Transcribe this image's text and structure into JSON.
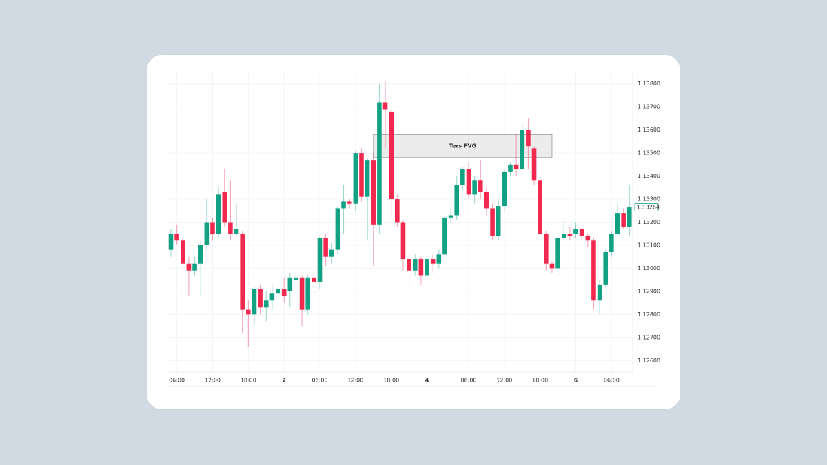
{
  "chart_data": {
    "type": "candlestick",
    "categories": [
      null,
      "06:00",
      null,
      null,
      null,
      null,
      null,
      "12:00",
      null,
      null,
      null,
      null,
      null,
      "18:00",
      null,
      null,
      null,
      null,
      null,
      "2",
      null,
      null,
      null,
      null,
      null,
      "06:00",
      null,
      null,
      null,
      null,
      null,
      "12:00",
      null,
      null,
      null,
      null,
      null,
      "18:00",
      null,
      null,
      null,
      null,
      null,
      "4",
      null,
      null,
      null,
      null,
      null,
      null,
      "06:00",
      null,
      null,
      null,
      null,
      null,
      "12:00",
      null,
      null,
      null,
      null,
      null,
      "18:00",
      null,
      null,
      null,
      null,
      null,
      "6",
      null,
      null,
      null,
      null,
      null,
      "06:00",
      null,
      null,
      null
    ],
    "open": [
      1.1308,
      1.1315,
      1.1312,
      1.1302,
      1.1299,
      1.1302,
      1.131,
      1.132,
      1.1315,
      1.1333,
      1.132,
      1.1315,
      1.1315,
      1.1282,
      1.128,
      1.1291,
      1.1283,
      1.1286,
      1.1289,
      1.1291,
      1.129,
      1.1295,
      1.1296,
      1.1282,
      1.1296,
      1.1294,
      1.1313,
      1.1305,
      1.1308,
      1.1326,
      1.1329,
      1.1328,
      1.135,
      1.1331,
      1.1347,
      1.1319,
      1.1372,
      1.1368,
      1.133,
      1.132,
      1.1304,
      1.1299,
      1.1304,
      1.1297,
      1.1304,
      1.1302,
      1.1306,
      1.1322,
      1.1323,
      1.1336,
      1.1343,
      1.1332,
      1.1338,
      1.1333,
      1.1326,
      1.1314,
      1.1327,
      1.1342,
      1.1345,
      1.1343,
      1.136,
      1.1352,
      1.1338,
      1.1315,
      1.1302,
      1.13,
      1.1313,
      1.1315,
      1.1315,
      1.1317,
      1.1314,
      1.1312,
      1.1286,
      1.1293,
      1.1307,
      1.1315,
      1.1324,
      1.1318
    ],
    "high": [
      1.1317,
      1.1319,
      1.1313,
      1.1305,
      1.1305,
      1.1312,
      1.133,
      1.1322,
      1.1335,
      1.1343,
      1.1338,
      1.1328,
      1.1316,
      1.1286,
      1.1292,
      1.1293,
      1.129,
      1.1293,
      1.1293,
      1.1296,
      1.1298,
      1.13,
      1.1297,
      1.1297,
      1.1298,
      1.1314,
      1.1315,
      1.1311,
      1.1327,
      1.1336,
      1.133,
      1.1351,
      1.1352,
      1.1348,
      1.135,
      1.138,
      1.1381,
      1.1369,
      1.1332,
      1.1321,
      1.1306,
      1.1306,
      1.1305,
      1.1306,
      1.1306,
      1.1308,
      1.1323,
      1.1326,
      1.134,
      1.1344,
      1.1346,
      1.134,
      1.1347,
      1.1335,
      1.1328,
      1.133,
      1.1343,
      1.1346,
      1.1358,
      1.1363,
      1.1365,
      1.1353,
      1.1339,
      1.1316,
      1.1303,
      1.1314,
      1.1321,
      1.1318,
      1.132,
      1.1318,
      1.1315,
      1.1313,
      1.1295,
      1.1308,
      1.1316,
      1.1328,
      1.1326,
      1.1336
    ],
    "low": [
      1.1305,
      1.131,
      1.13,
      1.1288,
      1.1297,
      1.1288,
      1.1308,
      1.1312,
      1.1313,
      1.1318,
      1.1312,
      1.1314,
      1.1272,
      1.1266,
      1.1276,
      1.128,
      1.1277,
      1.1282,
      1.1286,
      1.1285,
      1.1283,
      1.1292,
      1.1275,
      1.128,
      1.1292,
      1.1291,
      1.1301,
      1.1302,
      1.1306,
      1.1315,
      1.1326,
      1.1325,
      1.1329,
      1.1312,
      1.1301,
      1.1315,
      1.1352,
      1.1322,
      1.1318,
      1.1299,
      1.1292,
      1.1297,
      1.1293,
      1.1294,
      1.1298,
      1.13,
      1.1305,
      1.132,
      1.1321,
      1.1334,
      1.133,
      1.1328,
      1.133,
      1.1323,
      1.1312,
      1.1312,
      1.1325,
      1.134,
      1.134,
      1.1341,
      1.1343,
      1.1336,
      1.1314,
      1.1299,
      1.1298,
      1.1297,
      1.1312,
      1.1312,
      1.1313,
      1.1312,
      1.1309,
      1.1282,
      1.128,
      1.1292,
      1.1305,
      1.1314,
      1.1317,
      1.1314
    ],
    "close": [
      1.1315,
      1.1312,
      1.1302,
      1.1299,
      1.1302,
      1.131,
      1.132,
      1.1315,
      1.1332,
      1.132,
      1.1315,
      1.1317,
      1.1282,
      1.128,
      1.1291,
      1.1283,
      1.1286,
      1.1289,
      1.1291,
      1.1288,
      1.1296,
      1.1296,
      1.1282,
      1.1296,
      1.1294,
      1.1313,
      1.1305,
      1.1308,
      1.1326,
      1.1329,
      1.1328,
      1.135,
      1.1331,
      1.1347,
      1.1319,
      1.1372,
      1.1369,
      1.133,
      1.132,
      1.1304,
      1.1299,
      1.1304,
      1.1297,
      1.1304,
      1.1302,
      1.1306,
      1.1322,
      1.1323,
      1.1336,
      1.1343,
      1.1332,
      1.1338,
      1.1333,
      1.1326,
      1.1314,
      1.1327,
      1.1342,
      1.1345,
      1.1343,
      1.136,
      1.1353,
      1.1338,
      1.1315,
      1.1302,
      1.13,
      1.1313,
      1.1315,
      1.1314,
      1.1317,
      1.1314,
      1.1312,
      1.1286,
      1.1293,
      1.1307,
      1.1315,
      1.1324,
      1.1318,
      1.13264
    ],
    "up_color": "#13a184",
    "down_color": "#f2294f",
    "ylim": [
      1.1255,
      1.1385
    ],
    "yticks": [
      {
        "value": 1.126,
        "label": "1.12600"
      },
      {
        "value": 1.127,
        "label": "1.12700"
      },
      {
        "value": 1.128,
        "label": "1.12800"
      },
      {
        "value": 1.129,
        "label": "1.12900"
      },
      {
        "value": 1.13,
        "label": "1.13000"
      },
      {
        "value": 1.131,
        "label": "1.13100"
      },
      {
        "value": 1.132,
        "label": "1.13200"
      },
      {
        "value": 1.133,
        "label": "1.13300"
      },
      {
        "value": 1.134,
        "label": "1.13400"
      },
      {
        "value": 1.135,
        "label": "1.13500"
      },
      {
        "value": 1.136,
        "label": "1.13600"
      },
      {
        "value": 1.137,
        "label": "1.13700"
      },
      {
        "value": 1.138,
        "label": "1.13800"
      }
    ],
    "grid": true,
    "zone": {
      "label": "Ters FVG",
      "from": 34,
      "to": 64,
      "top": 1.1358,
      "bottom": 1.1348
    }
  }
}
